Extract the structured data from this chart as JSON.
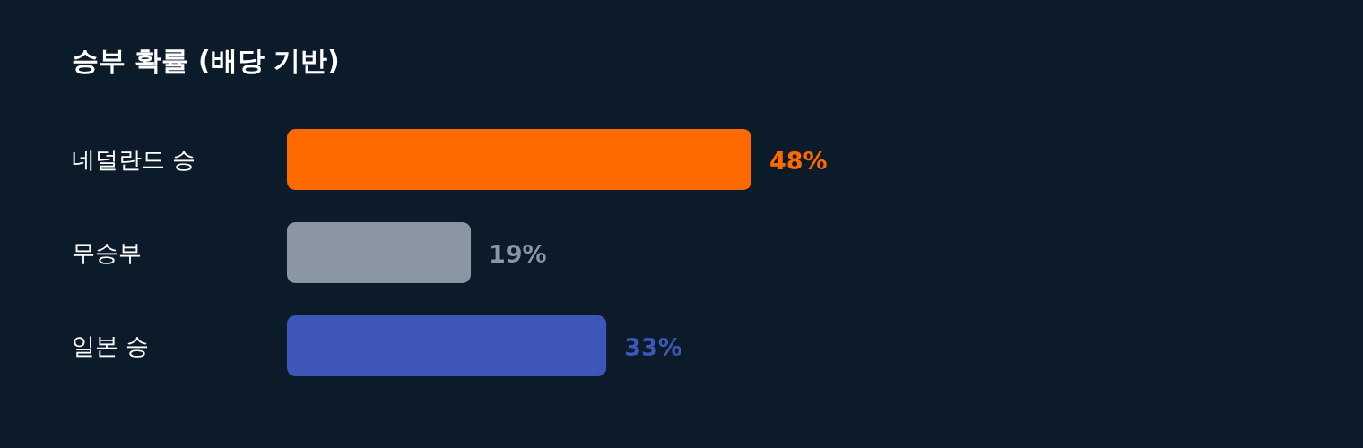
{
  "chart_data": {
    "type": "bar",
    "orientation": "horizontal",
    "title": "승부 확률 (배당 기반)",
    "categories": [
      "네덜란드 승",
      "무승부",
      "일본 승"
    ],
    "values": [
      48,
      19,
      33
    ],
    "colors": [
      "#ff6a00",
      "#8a96a3",
      "#3d56b8"
    ],
    "value_labels": [
      "48%",
      "19%",
      "33%"
    ]
  }
}
